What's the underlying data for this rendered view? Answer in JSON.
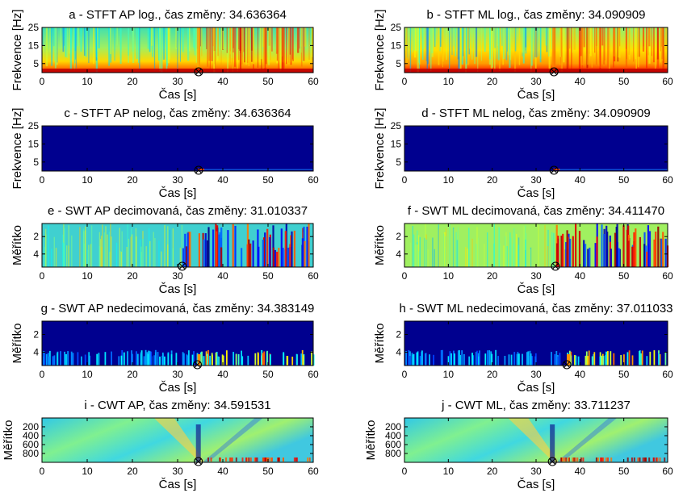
{
  "colors": {
    "jet_dark": "#00008f",
    "jet_low": "#0000ff",
    "jet_cyan": "#00ffff",
    "jet_yellow": "#ffff00",
    "jet_red": "#ff0000"
  },
  "chart_data": [
    {
      "id": "a",
      "type": "heatmap",
      "title": "a - STFT AP log., čas změny: 34.636364",
      "xlabel": "Čas [s]",
      "ylabel": "Frekvence [Hz]",
      "xlim": [
        0,
        60
      ],
      "xticks": [
        "0",
        "10",
        "20",
        "30",
        "40",
        "50",
        "60"
      ],
      "ylim": [
        0,
        25
      ],
      "yticks": [
        "25",
        "15",
        "5"
      ],
      "y_tick_values": [
        25,
        15,
        5
      ],
      "y_reversed": false,
      "change_time": 34.636364,
      "background": "spectrogram-log-ap"
    },
    {
      "id": "b",
      "type": "heatmap",
      "title": "b - STFT ML log., čas změny: 34.090909",
      "xlabel": "Čas [s]",
      "ylabel": "Frekvence [Hz]",
      "xlim": [
        0,
        60
      ],
      "xticks": [
        "0",
        "10",
        "20",
        "30",
        "40",
        "50",
        "60"
      ],
      "ylim": [
        0,
        25
      ],
      "yticks": [
        "25",
        "15",
        "5"
      ],
      "y_tick_values": [
        25,
        15,
        5
      ],
      "y_reversed": false,
      "change_time": 34.090909,
      "background": "spectrogram-log-ml"
    },
    {
      "id": "c",
      "type": "heatmap",
      "title": "c - STFT AP nelog, čas změny: 34.636364",
      "xlabel": "Čas [s]",
      "ylabel": "Frekvence [Hz]",
      "xlim": [
        0,
        60
      ],
      "xticks": [
        "0",
        "10",
        "20",
        "30",
        "40",
        "50",
        "60"
      ],
      "ylim": [
        0,
        25
      ],
      "yticks": [
        "25",
        "15",
        "5"
      ],
      "y_tick_values": [
        25,
        15,
        5
      ],
      "y_reversed": false,
      "change_time": 34.636364,
      "background": "spectrogram-linear"
    },
    {
      "id": "d",
      "type": "heatmap",
      "title": "d - STFT ML nelog, čas změny: 34.090909",
      "xlabel": "Čas [s]",
      "ylabel": "Frekvence [Hz]",
      "xlim": [
        0,
        60
      ],
      "xticks": [
        "0",
        "10",
        "20",
        "30",
        "40",
        "50",
        "60"
      ],
      "ylim": [
        0,
        25
      ],
      "yticks": [
        "25",
        "15",
        "5"
      ],
      "y_tick_values": [
        25,
        15,
        5
      ],
      "y_reversed": false,
      "change_time": 34.090909,
      "background": "spectrogram-linear"
    },
    {
      "id": "e",
      "type": "heatmap",
      "title": "e - SWT AP decimovaná, čas změny: 31.010337",
      "xlabel": "Čas [s]",
      "ylabel": "Měřítko",
      "xlim": [
        0,
        60
      ],
      "xticks": [
        "0",
        "10",
        "20",
        "30",
        "40",
        "50",
        "60"
      ],
      "ylim": [
        0.5,
        5.5
      ],
      "yticks": [
        "2",
        "4"
      ],
      "y_tick_values": [
        2,
        4
      ],
      "y_reversed": true,
      "change_time": 31.010337,
      "background": "swt-decimated-ap"
    },
    {
      "id": "f",
      "type": "heatmap",
      "title": "f - SWT ML decimovaná, čas změny: 34.411470",
      "xlabel": "Čas [s]",
      "ylabel": "Měřítko",
      "xlim": [
        0,
        60
      ],
      "xticks": [
        "0",
        "10",
        "20",
        "30",
        "40",
        "50",
        "60"
      ],
      "ylim": [
        0.5,
        5.5
      ],
      "yticks": [
        "2",
        "4"
      ],
      "y_tick_values": [
        2,
        4
      ],
      "y_reversed": true,
      "change_time": 34.41147,
      "background": "swt-decimated-ml"
    },
    {
      "id": "g",
      "type": "heatmap",
      "title": "g - SWT AP nedecimovaná, čas změny: 34.383149",
      "xlabel": "Čas [s]",
      "ylabel": "Měřítko",
      "xlim": [
        0,
        60
      ],
      "xticks": [
        "0",
        "10",
        "20",
        "30",
        "40",
        "50",
        "60"
      ],
      "ylim": [
        0.5,
        5.5
      ],
      "yticks": [
        "2",
        "4"
      ],
      "y_tick_values": [
        2,
        4
      ],
      "y_reversed": true,
      "change_time": 34.383149,
      "background": "swt-undecimated"
    },
    {
      "id": "h",
      "type": "heatmap",
      "title": "h - SWT ML nedecimovaná, čas změny: 37.011033",
      "xlabel": "Čas [s]",
      "ylabel": "Měřítko",
      "xlim": [
        0,
        60
      ],
      "xticks": [
        "0",
        "10",
        "20",
        "30",
        "40",
        "50",
        "60"
      ],
      "ylim": [
        0.5,
        5.5
      ],
      "yticks": [
        "2",
        "4"
      ],
      "y_tick_values": [
        2,
        4
      ],
      "y_reversed": true,
      "change_time": 37.011033,
      "background": "swt-undecimated"
    },
    {
      "id": "i",
      "type": "heatmap",
      "title": "i - CWT AP, čas změny: 34.591531",
      "xlabel": "Čas [s]",
      "ylabel": "Měřítko",
      "xlim": [
        0,
        60
      ],
      "xticks": [
        "0",
        "10",
        "20",
        "30",
        "40",
        "50",
        "60"
      ],
      "ylim": [
        1,
        1000
      ],
      "yticks": [
        "200",
        "400",
        "600",
        "800"
      ],
      "y_tick_values": [
        200,
        400,
        600,
        800
      ],
      "y_reversed": true,
      "change_time": 34.591531,
      "background": "cwt"
    },
    {
      "id": "j",
      "type": "heatmap",
      "title": "j - CWT ML, čas změny: 33.711237",
      "xlabel": "Čas [s]",
      "ylabel": "Měřítko",
      "xlim": [
        0,
        60
      ],
      "xticks": [
        "0",
        "10",
        "20",
        "30",
        "40",
        "50",
        "60"
      ],
      "ylim": [
        1,
        1000
      ],
      "yticks": [
        "200",
        "400",
        "600",
        "800"
      ],
      "y_tick_values": [
        200,
        400,
        600,
        800
      ],
      "y_reversed": true,
      "change_time": 33.711237,
      "background": "cwt"
    }
  ]
}
